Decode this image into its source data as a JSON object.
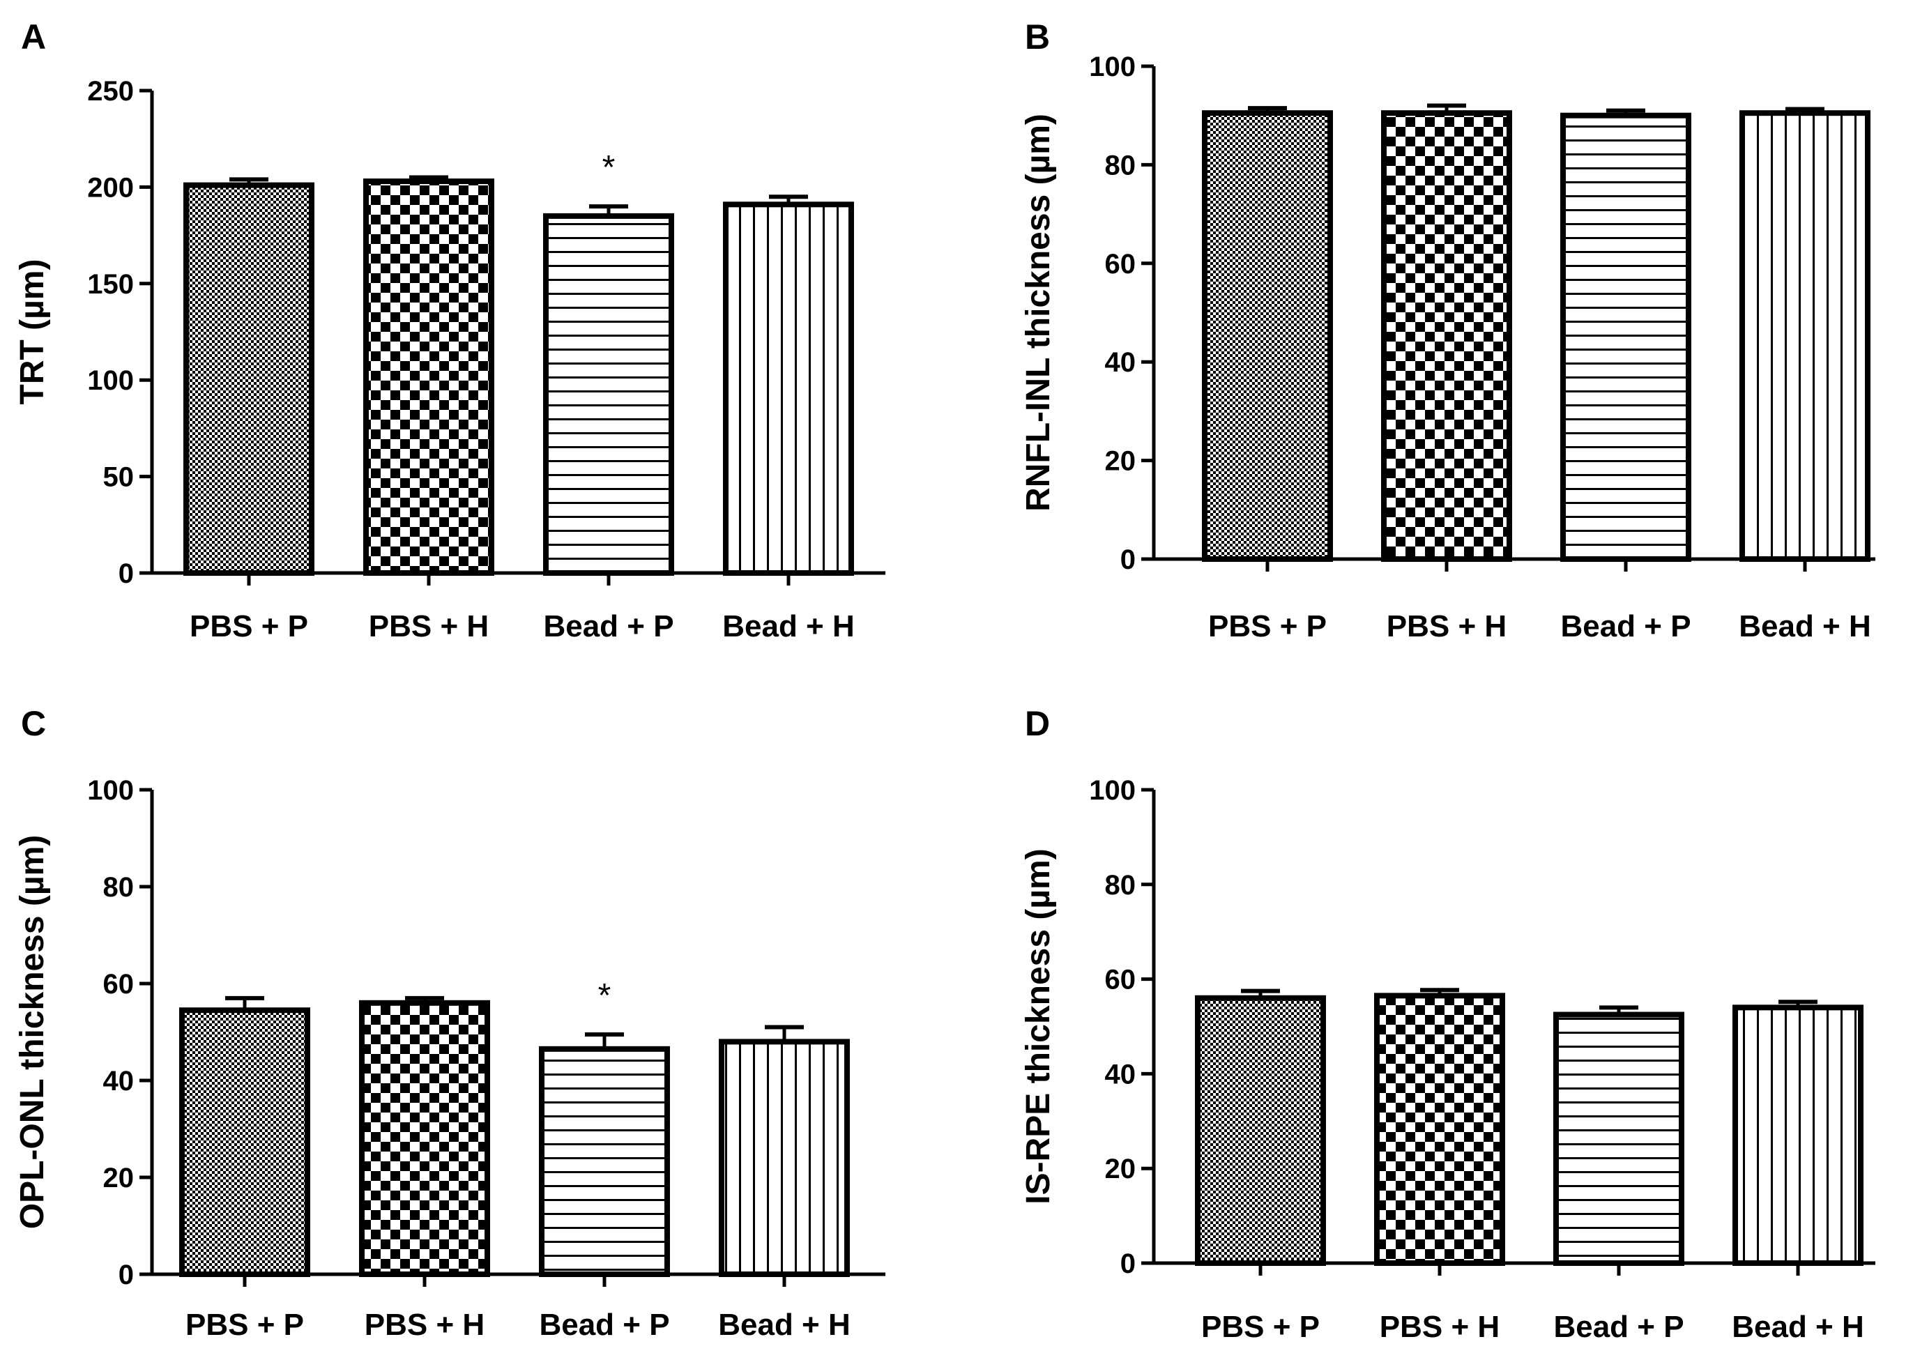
{
  "figure": {
    "background": "#ffffff",
    "ink": "#000000"
  },
  "chart_data": [
    {
      "panel": "A",
      "type": "bar",
      "title": "",
      "xlabel": "",
      "ylabel": "TRT (µm)",
      "ylim": [
        0,
        250
      ],
      "yticks": [
        0,
        50,
        100,
        150,
        200,
        250
      ],
      "categories": [
        "PBS + P",
        "PBS + H",
        "Bead + P",
        "Bead + H"
      ],
      "values": [
        201,
        203,
        185,
        191
      ],
      "errors": [
        3,
        2,
        5,
        4
      ],
      "significance": [
        "",
        "",
        "*",
        ""
      ],
      "patterns": [
        "fine-check",
        "checker",
        "horizontal",
        "vertical"
      ]
    },
    {
      "panel": "B",
      "type": "bar",
      "title": "",
      "xlabel": "",
      "ylabel": "RNFL-INL thickness (µm)",
      "ylim": [
        0,
        100
      ],
      "yticks": [
        0,
        20,
        40,
        60,
        80,
        100
      ],
      "categories": [
        "PBS + P",
        "PBS + H",
        "Bead + P",
        "Bead + H"
      ],
      "values": [
        90.5,
        90.5,
        90.0,
        90.5
      ],
      "errors": [
        1.0,
        1.5,
        1.0,
        0.8
      ],
      "significance": [
        "",
        "",
        "",
        ""
      ],
      "patterns": [
        "fine-check",
        "checker",
        "horizontal",
        "vertical"
      ]
    },
    {
      "panel": "C",
      "type": "bar",
      "title": "",
      "xlabel": "",
      "ylabel": "OPL-ONL thickness (µm)",
      "ylim": [
        0,
        100
      ],
      "yticks": [
        0,
        20,
        40,
        60,
        80,
        100
      ],
      "categories": [
        "PBS + P",
        "PBS + H",
        "Bead + P",
        "Bead + H"
      ],
      "values": [
        54.5,
        56,
        46.5,
        48
      ],
      "errors": [
        2.5,
        1,
        3,
        3
      ],
      "significance": [
        "",
        "",
        "*",
        ""
      ],
      "patterns": [
        "fine-check",
        "checker",
        "horizontal",
        "vertical"
      ]
    },
    {
      "panel": "D",
      "type": "bar",
      "title": "",
      "xlabel": "",
      "ylabel": "IS-RPE thickness (µm)",
      "ylim": [
        0,
        100
      ],
      "yticks": [
        0,
        20,
        40,
        60,
        80,
        100
      ],
      "categories": [
        "PBS + P",
        "PBS + H",
        "Bead + P",
        "Bead + H"
      ],
      "values": [
        56,
        56.5,
        52.5,
        54
      ],
      "errors": [
        1.5,
        1.2,
        1.5,
        1.2
      ],
      "significance": [
        "",
        "",
        "",
        ""
      ],
      "patterns": [
        "fine-check",
        "checker",
        "horizontal",
        "vertical"
      ]
    }
  ]
}
